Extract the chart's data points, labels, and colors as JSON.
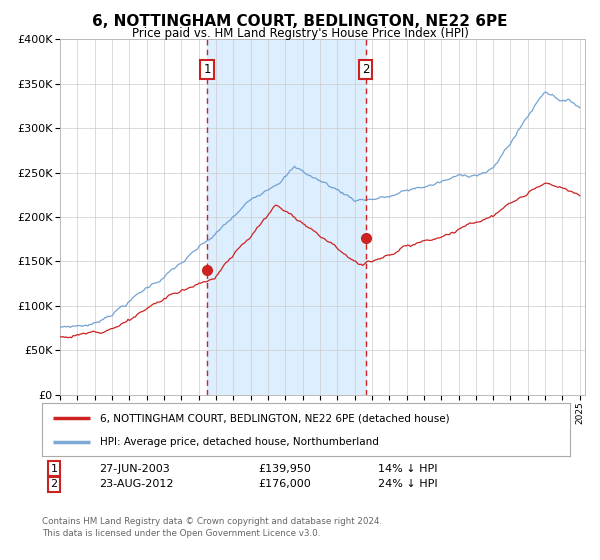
{
  "title": "6, NOTTINGHAM COURT, BEDLINGTON, NE22 6PE",
  "subtitle": "Price paid vs. HM Land Registry's House Price Index (HPI)",
  "background_color": "#ffffff",
  "plot_bg_color": "#ffffff",
  "grid_color": "#cccccc",
  "y_min": 0,
  "y_max": 400000,
  "y_ticks": [
    0,
    50000,
    100000,
    150000,
    200000,
    250000,
    300000,
    350000,
    400000
  ],
  "y_tick_labels": [
    "£0",
    "£50K",
    "£100K",
    "£150K",
    "£200K",
    "£250K",
    "£300K",
    "£350K",
    "£400K"
  ],
  "sale1_price": 139950,
  "sale1_label": "1",
  "sale1_year": 2003.49,
  "sale2_price": 176000,
  "sale2_label": "2",
  "sale2_year": 2012.64,
  "shade_color": "#ddeeff",
  "red_line_color": "#cc2222",
  "blue_line_color": "#6699cc",
  "dashed_line_color": "#cc2222",
  "marker_color": "#cc2222",
  "legend1": "6, NOTTINGHAM COURT, BEDLINGTON, NE22 6PE (detached house)",
  "legend2": "HPI: Average price, detached house, Northumberland",
  "footer1": "Contains HM Land Registry data © Crown copyright and database right 2024.",
  "footer2": "This data is licensed under the Open Government Licence v3.0.",
  "sale1_date": "27-JUN-2003",
  "sale1_pricef": "£139,950",
  "sale1_pct": "14% ↓ HPI",
  "sale2_date": "23-AUG-2012",
  "sale2_pricef": "£176,000",
  "sale2_pct": "24% ↓ HPI"
}
